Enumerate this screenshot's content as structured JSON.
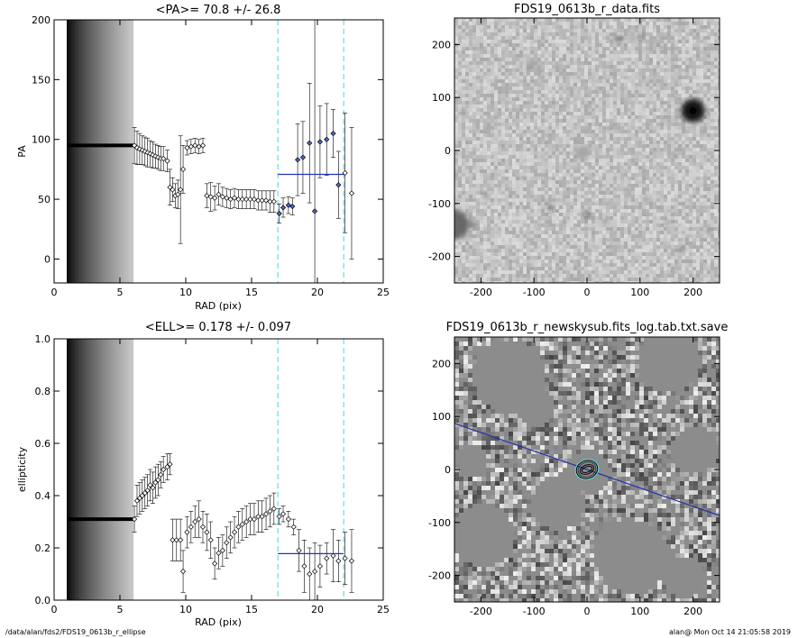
{
  "chart_data": [
    {
      "type": "scatter",
      "title": "<PA>=  70.8 +/-  26.8",
      "xlabel": "RAD (pix)",
      "ylabel": "PA",
      "xlim": [
        0,
        25
      ],
      "ylim": [
        -20,
        200
      ],
      "xticks": [
        0,
        5,
        10,
        15,
        20,
        25
      ],
      "yticks": [
        0,
        50,
        100,
        150,
        200
      ],
      "shaded_band": [
        1.0,
        6.0
      ],
      "plateau": {
        "x_start": 1.0,
        "x_end": 6.0,
        "y": 95
      },
      "points": [
        {
          "x": 6.1,
          "y": 95,
          "e": 15
        },
        {
          "x": 6.3,
          "y": 93,
          "e": 14
        },
        {
          "x": 6.5,
          "y": 92,
          "e": 13
        },
        {
          "x": 6.7,
          "y": 91,
          "e": 12
        },
        {
          "x": 6.9,
          "y": 90,
          "e": 12
        },
        {
          "x": 7.1,
          "y": 89,
          "e": 12
        },
        {
          "x": 7.3,
          "y": 88,
          "e": 11
        },
        {
          "x": 7.5,
          "y": 87,
          "e": 11
        },
        {
          "x": 7.7,
          "y": 86,
          "e": 10
        },
        {
          "x": 7.9,
          "y": 85,
          "e": 10
        },
        {
          "x": 8.1,
          "y": 84,
          "e": 10
        },
        {
          "x": 8.3,
          "y": 84,
          "e": 10
        },
        {
          "x": 8.6,
          "y": 82,
          "e": 9
        },
        {
          "x": 8.8,
          "y": 60,
          "e": 15
        },
        {
          "x": 9.0,
          "y": 58,
          "e": 10
        },
        {
          "x": 9.2,
          "y": 53,
          "e": 10
        },
        {
          "x": 9.4,
          "y": 54,
          "e": 12
        },
        {
          "x": 9.6,
          "y": 58,
          "e": 45
        },
        {
          "x": 9.8,
          "y": 75,
          "e": 20
        },
        {
          "x": 10.1,
          "y": 93,
          "e": 6
        },
        {
          "x": 10.4,
          "y": 94,
          "e": 6
        },
        {
          "x": 10.7,
          "y": 95,
          "e": 6
        },
        {
          "x": 11.0,
          "y": 94,
          "e": 6
        },
        {
          "x": 11.3,
          "y": 95,
          "e": 6
        },
        {
          "x": 11.6,
          "y": 53,
          "e": 10
        },
        {
          "x": 11.9,
          "y": 52,
          "e": 12
        },
        {
          "x": 12.2,
          "y": 51,
          "e": 10
        },
        {
          "x": 12.5,
          "y": 54,
          "e": 9
        },
        {
          "x": 12.8,
          "y": 52,
          "e": 8
        },
        {
          "x": 13.1,
          "y": 51,
          "e": 8
        },
        {
          "x": 13.4,
          "y": 50,
          "e": 8
        },
        {
          "x": 13.7,
          "y": 51,
          "e": 8
        },
        {
          "x": 14.0,
          "y": 50,
          "e": 8
        },
        {
          "x": 14.3,
          "y": 50,
          "e": 8
        },
        {
          "x": 14.6,
          "y": 50,
          "e": 8
        },
        {
          "x": 14.9,
          "y": 50,
          "e": 8
        },
        {
          "x": 15.2,
          "y": 50,
          "e": 8
        },
        {
          "x": 15.5,
          "y": 49,
          "e": 8
        },
        {
          "x": 15.8,
          "y": 49,
          "e": 8
        },
        {
          "x": 16.1,
          "y": 49,
          "e": 8
        },
        {
          "x": 16.4,
          "y": 48,
          "e": 9
        },
        {
          "x": 16.7,
          "y": 48,
          "e": 9
        },
        {
          "x": 17.1,
          "y": 38,
          "e": 8
        },
        {
          "x": 17.4,
          "y": 43,
          "e": 8
        },
        {
          "x": 17.8,
          "y": 45,
          "e": 7
        },
        {
          "x": 18.1,
          "y": 44,
          "e": 7
        },
        {
          "x": 18.5,
          "y": 83,
          "e": 30
        },
        {
          "x": 18.9,
          "y": 85,
          "e": 30
        },
        {
          "x": 19.4,
          "y": 97,
          "e": 50
        },
        {
          "x": 19.8,
          "y": 40,
          "e": 170
        },
        {
          "x": 20.2,
          "y": 98,
          "e": 30
        },
        {
          "x": 20.7,
          "y": 100,
          "e": 30
        },
        {
          "x": 21.2,
          "y": 105,
          "e": 20
        },
        {
          "x": 21.6,
          "y": 62,
          "e": 28
        },
        {
          "x": 22.1,
          "y": 72,
          "e": 50
        },
        {
          "x": 22.6,
          "y": 55,
          "e": 55
        }
      ],
      "mean_line": {
        "x_start": 17.0,
        "x_end": 22.0,
        "y": 70.8
      },
      "vlines": [
        17.0,
        22.0
      ]
    },
    {
      "type": "scatter",
      "title": "<ELL>= 0.178 +/-  0.097",
      "xlabel": "RAD (pix)",
      "ylabel": "ellipticity",
      "xlim": [
        0,
        25
      ],
      "ylim": [
        0,
        1
      ],
      "xticks": [
        0,
        5,
        10,
        15,
        20,
        25
      ],
      "yticks": [
        0.0,
        0.2,
        0.4,
        0.6,
        0.8,
        1.0
      ],
      "shaded_band": [
        1.0,
        6.0
      ],
      "plateau": {
        "x_start": 1.0,
        "x_end": 6.0,
        "y": 0.31
      },
      "points": [
        {
          "x": 6.1,
          "y": 0.31,
          "e": 0.05
        },
        {
          "x": 6.3,
          "y": 0.38,
          "e": 0.06
        },
        {
          "x": 6.5,
          "y": 0.39,
          "e": 0.06
        },
        {
          "x": 6.7,
          "y": 0.4,
          "e": 0.06
        },
        {
          "x": 6.9,
          "y": 0.41,
          "e": 0.06
        },
        {
          "x": 7.1,
          "y": 0.42,
          "e": 0.06
        },
        {
          "x": 7.3,
          "y": 0.44,
          "e": 0.06
        },
        {
          "x": 7.5,
          "y": 0.43,
          "e": 0.06
        },
        {
          "x": 7.7,
          "y": 0.45,
          "e": 0.06
        },
        {
          "x": 7.9,
          "y": 0.46,
          "e": 0.06
        },
        {
          "x": 8.1,
          "y": 0.48,
          "e": 0.05
        },
        {
          "x": 8.3,
          "y": 0.5,
          "e": 0.05
        },
        {
          "x": 8.6,
          "y": 0.51,
          "e": 0.05
        },
        {
          "x": 8.8,
          "y": 0.52,
          "e": 0.04
        },
        {
          "x": 9.0,
          "y": 0.23,
          "e": 0.08
        },
        {
          "x": 9.3,
          "y": 0.23,
          "e": 0.08
        },
        {
          "x": 9.6,
          "y": 0.23,
          "e": 0.08
        },
        {
          "x": 9.8,
          "y": 0.11,
          "e": 0.08
        },
        {
          "x": 10.1,
          "y": 0.26,
          "e": 0.06
        },
        {
          "x": 10.4,
          "y": 0.28,
          "e": 0.06
        },
        {
          "x": 10.7,
          "y": 0.3,
          "e": 0.06
        },
        {
          "x": 11.0,
          "y": 0.31,
          "e": 0.07
        },
        {
          "x": 11.3,
          "y": 0.28,
          "e": 0.06
        },
        {
          "x": 11.6,
          "y": 0.26,
          "e": 0.07
        },
        {
          "x": 11.9,
          "y": 0.23,
          "e": 0.07
        },
        {
          "x": 12.2,
          "y": 0.14,
          "e": 0.06
        },
        {
          "x": 12.5,
          "y": 0.18,
          "e": 0.06
        },
        {
          "x": 12.8,
          "y": 0.19,
          "e": 0.06
        },
        {
          "x": 13.1,
          "y": 0.22,
          "e": 0.06
        },
        {
          "x": 13.4,
          "y": 0.24,
          "e": 0.06
        },
        {
          "x": 13.7,
          "y": 0.26,
          "e": 0.06
        },
        {
          "x": 14.0,
          "y": 0.28,
          "e": 0.06
        },
        {
          "x": 14.3,
          "y": 0.29,
          "e": 0.06
        },
        {
          "x": 14.6,
          "y": 0.3,
          "e": 0.06
        },
        {
          "x": 14.9,
          "y": 0.31,
          "e": 0.06
        },
        {
          "x": 15.2,
          "y": 0.31,
          "e": 0.06
        },
        {
          "x": 15.5,
          "y": 0.32,
          "e": 0.06
        },
        {
          "x": 15.8,
          "y": 0.32,
          "e": 0.06
        },
        {
          "x": 16.1,
          "y": 0.33,
          "e": 0.06
        },
        {
          "x": 16.4,
          "y": 0.34,
          "e": 0.06
        },
        {
          "x": 16.7,
          "y": 0.35,
          "e": 0.06
        },
        {
          "x": 17.1,
          "y": 0.32,
          "e": 0.03
        },
        {
          "x": 17.4,
          "y": 0.33,
          "e": 0.03
        },
        {
          "x": 17.8,
          "y": 0.31,
          "e": 0.03
        },
        {
          "x": 18.2,
          "y": 0.28,
          "e": 0.03
        },
        {
          "x": 18.6,
          "y": 0.19,
          "e": 0.08
        },
        {
          "x": 19.0,
          "y": 0.13,
          "e": 0.1
        },
        {
          "x": 19.4,
          "y": 0.1,
          "e": 0.1
        },
        {
          "x": 19.8,
          "y": 0.11,
          "e": 0.11
        },
        {
          "x": 20.2,
          "y": 0.13,
          "e": 0.08
        },
        {
          "x": 20.7,
          "y": 0.16,
          "e": 0.06
        },
        {
          "x": 21.2,
          "y": 0.17,
          "e": 0.1
        },
        {
          "x": 21.6,
          "y": 0.15,
          "e": 0.08
        },
        {
          "x": 22.1,
          "y": 0.16,
          "e": 0.1
        },
        {
          "x": 22.6,
          "y": 0.15,
          "e": 0.12
        }
      ],
      "mean_line": {
        "x_start": 17.0,
        "x_end": 22.0,
        "y": 0.178
      },
      "vlines": [
        17.0,
        22.0
      ]
    },
    {
      "type": "heatmap",
      "title": "FDS19_0613b_r_data.fits",
      "xlim": [
        -250,
        250
      ],
      "ylim": [
        -250,
        250
      ],
      "xticks": [
        -200,
        -100,
        0,
        100,
        200
      ],
      "yticks": [
        -200,
        -100,
        0,
        100,
        200
      ],
      "colormap": "inverted gray",
      "sources": [
        {
          "x": 200,
          "y": 75,
          "r": 22,
          "i": 1.0
        },
        {
          "x": -250,
          "y": -140,
          "r": 28,
          "i": 0.6
        },
        {
          "x": -215,
          "y": -140,
          "r": 6,
          "i": 0.5
        },
        {
          "x": 60,
          "y": 210,
          "r": 6,
          "i": 0.7
        },
        {
          "x": 100,
          "y": 215,
          "r": 5,
          "i": 0.6
        },
        {
          "x": -110,
          "y": 155,
          "r": 4,
          "i": 0.6
        },
        {
          "x": 0,
          "y": -120,
          "r": 5,
          "i": 0.8
        },
        {
          "x": -70,
          "y": -110,
          "r": 5,
          "i": 0.6
        },
        {
          "x": -190,
          "y": -85,
          "r": 5,
          "i": 0.5
        },
        {
          "x": 180,
          "y": -185,
          "r": 5,
          "i": 0.5
        },
        {
          "x": 110,
          "y": -90,
          "r": 4,
          "i": 0.6
        },
        {
          "x": -10,
          "y": -5,
          "r": 14,
          "i": 0.3
        },
        {
          "x": 35,
          "y": -130,
          "r": 4,
          "i": 0.6
        },
        {
          "x": -235,
          "y": 75,
          "r": 5,
          "i": 0.4
        },
        {
          "x": 165,
          "y": -10,
          "r": 4,
          "i": 0.5
        },
        {
          "x": 75,
          "y": -80,
          "r": 4,
          "i": 0.5
        },
        {
          "x": 140,
          "y": 195,
          "r": 4,
          "i": 0.5
        },
        {
          "x": -160,
          "y": 15,
          "r": 4,
          "i": 0.4
        },
        {
          "x": 230,
          "y": -150,
          "r": 4,
          "i": 0.5
        },
        {
          "x": -120,
          "y": -50,
          "r": 4,
          "i": 0.4
        },
        {
          "x": 40,
          "y": 40,
          "r": 4,
          "i": 0.4
        },
        {
          "x": -30,
          "y": 110,
          "r": 3,
          "i": 0.4
        },
        {
          "x": 150,
          "y": -135,
          "r": 4,
          "i": 0.5
        },
        {
          "x": -200,
          "y": 200,
          "r": 3,
          "i": 0.4
        }
      ]
    },
    {
      "type": "heatmap",
      "title": "FDS19_0613b_r_newskysub.fits_log.tab.txt.save",
      "xlim": [
        -250,
        250
      ],
      "ylim": [
        -250,
        250
      ],
      "xticks": [
        -200,
        -100,
        0,
        100,
        200
      ],
      "yticks": [
        -200,
        -100,
        0,
        100,
        200
      ],
      "colormap": "gray",
      "pa_line": {
        "angle_deg": 70.8
      },
      "ellipse_center": [
        0,
        0
      ]
    }
  ],
  "footer": {
    "left": "/data/alan/fds2/FDS19_0613b_r_ellipse",
    "right": "alan@  Mon Oct 14 21:05:58 2019"
  }
}
